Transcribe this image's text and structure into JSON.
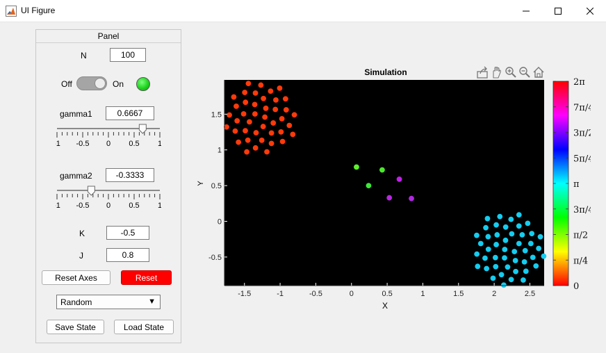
{
  "window": {
    "title": "UI Figure",
    "icons": {
      "app": "matlab-icon",
      "minimize": "minimize-icon",
      "maximize": "maximize-icon",
      "close": "close-icon"
    }
  },
  "panel": {
    "title": "Panel",
    "n_label": "N",
    "n_value": "100",
    "switch": {
      "off_label": "Off",
      "on_label": "On",
      "state": "On"
    },
    "lamp_color": "#22dd22",
    "gamma1": {
      "label": "gamma1",
      "value": "0.6667",
      "slider_value": 0.6667
    },
    "gamma2": {
      "label": "gamma2",
      "value": "-0.3333",
      "slider_value": -0.3333
    },
    "slider_ticks": [
      "-1",
      "-0.5",
      "0",
      "0.5",
      "1"
    ],
    "k": {
      "label": "K",
      "value": "-0.5"
    },
    "j": {
      "label": "J",
      "value": "0.8"
    },
    "reset_axes_label": "Reset Axes",
    "reset_label": "Reset",
    "init_select": {
      "value": "Random"
    },
    "save_state_label": "Save State",
    "load_state_label": "Load State"
  },
  "axes_toolbar": [
    "export-icon",
    "pan-icon",
    "zoom-in-icon",
    "zoom-out-icon",
    "home-icon"
  ],
  "chart_data": {
    "type": "scatter",
    "title": "Simulation",
    "xlabel": "X",
    "ylabel": "Y",
    "xlim": [
      -1.78,
      2.7
    ],
    "ylim": [
      -0.9,
      1.98
    ],
    "xticks": [
      "-1.5",
      "-1",
      "-0.5",
      "0",
      "0.5",
      "1",
      "1.5",
      "2",
      "2.5"
    ],
    "xtick_values": [
      -1.5,
      -1,
      -0.5,
      0,
      0.5,
      1,
      1.5,
      2,
      2.5
    ],
    "yticks": [
      "-0.5",
      "0",
      "0.5",
      "1",
      "1.5"
    ],
    "ytick_values": [
      -0.5,
      0,
      0.5,
      1,
      1.5
    ],
    "background": "#000000",
    "grid": false,
    "colorbar": {
      "colormap": "hsv",
      "range": [
        0,
        6.2832
      ],
      "tick_labels": [
        "0",
        "π/4",
        "π/2",
        "3π/4",
        "π",
        "5π/4",
        "3π/2",
        "7π/4",
        "2π"
      ],
      "tick_values": [
        0,
        0.7854,
        1.5708,
        2.3562,
        3.1416,
        3.927,
        4.7124,
        5.4978,
        6.2832
      ]
    },
    "clusters": [
      {
        "name": "red cluster",
        "center": [
          -1.27,
          1.45
        ],
        "radius": 0.52,
        "phase": 0.17,
        "color": "#ff3a0a",
        "count": 42
      },
      {
        "name": "cyan cluster",
        "center": [
          2.2,
          -0.38
        ],
        "radius": 0.52,
        "phase": 3.4,
        "color": "#14cdf0",
        "count": 46
      }
    ],
    "points": [
      {
        "x": 0.07,
        "y": 0.76,
        "color": "#5cf02a"
      },
      {
        "x": 0.43,
        "y": 0.72,
        "color": "#4ae82a"
      },
      {
        "x": 0.24,
        "y": 0.5,
        "color": "#3ee63a"
      },
      {
        "x": 0.67,
        "y": 0.59,
        "color": "#c020e8"
      },
      {
        "x": 0.53,
        "y": 0.33,
        "color": "#b828e0"
      },
      {
        "x": 0.84,
        "y": 0.32,
        "color": "#b028e0"
      }
    ]
  }
}
